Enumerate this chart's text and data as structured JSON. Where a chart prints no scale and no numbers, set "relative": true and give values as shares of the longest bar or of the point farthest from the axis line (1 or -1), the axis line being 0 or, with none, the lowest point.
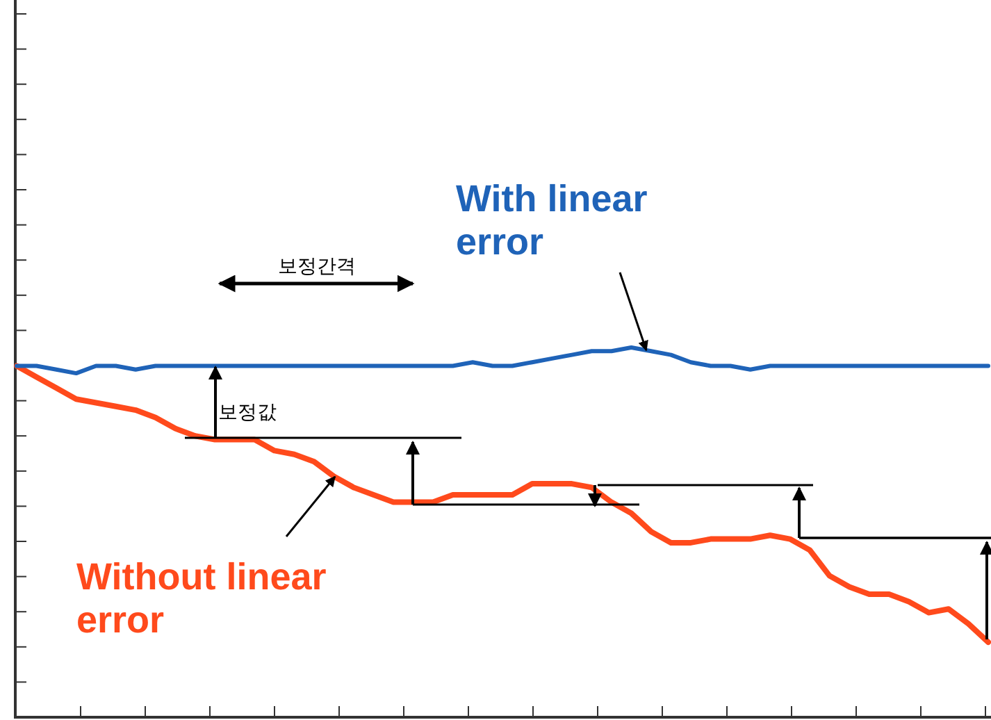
{
  "chart_data": {
    "type": "line",
    "relative": true,
    "categories": [
      null,
      null,
      null,
      null,
      null,
      null,
      null,
      null,
      null,
      null,
      null,
      null,
      null,
      null,
      null,
      null,
      null,
      null,
      null,
      null,
      null,
      null,
      null,
      null,
      null,
      null,
      null,
      null,
      null,
      null,
      null,
      null,
      null,
      null,
      null,
      null,
      null,
      null,
      null,
      null,
      null,
      null,
      null,
      null,
      null,
      null,
      null,
      null,
      null,
      null
    ],
    "series": [
      {
        "name": "With linear error",
        "color": "#1f63b8",
        "values": [
          0.95,
          0.95,
          0.94,
          0.93,
          0.95,
          0.95,
          0.94,
          0.95,
          0.95,
          0.95,
          0.95,
          0.95,
          0.95,
          0.95,
          0.95,
          0.95,
          0.95,
          0.95,
          0.95,
          0.95,
          0.95,
          0.95,
          0.95,
          0.96,
          0.95,
          0.95,
          0.96,
          0.97,
          0.98,
          0.99,
          0.99,
          1,
          0.99,
          0.98,
          0.96,
          0.95,
          0.95,
          0.94,
          0.95,
          0.95,
          0.95,
          0.95,
          0.95,
          0.95,
          0.95,
          0.95,
          0.95,
          0.95,
          0.95,
          0.95
        ]
      },
      {
        "name": "Without linear error",
        "color": "#ff4a1c",
        "values": [
          0.95,
          0.92,
          0.89,
          0.86,
          0.85,
          0.84,
          0.83,
          0.81,
          0.78,
          0.76,
          0.75,
          0.75,
          0.75,
          0.72,
          0.71,
          0.69,
          0.65,
          0.62,
          0.6,
          0.58,
          0.58,
          0.58,
          0.6,
          0.6,
          0.6,
          0.6,
          0.63,
          0.63,
          0.63,
          0.62,
          0.58,
          0.55,
          0.5,
          0.47,
          0.47,
          0.48,
          0.48,
          0.48,
          0.49,
          0.48,
          0.45,
          0.38,
          0.35,
          0.33,
          0.33,
          0.31,
          0.28,
          0.29,
          0.25,
          0.2
        ]
      }
    ],
    "annotations": [
      "보정간격",
      "보정값"
    ]
  }
}
